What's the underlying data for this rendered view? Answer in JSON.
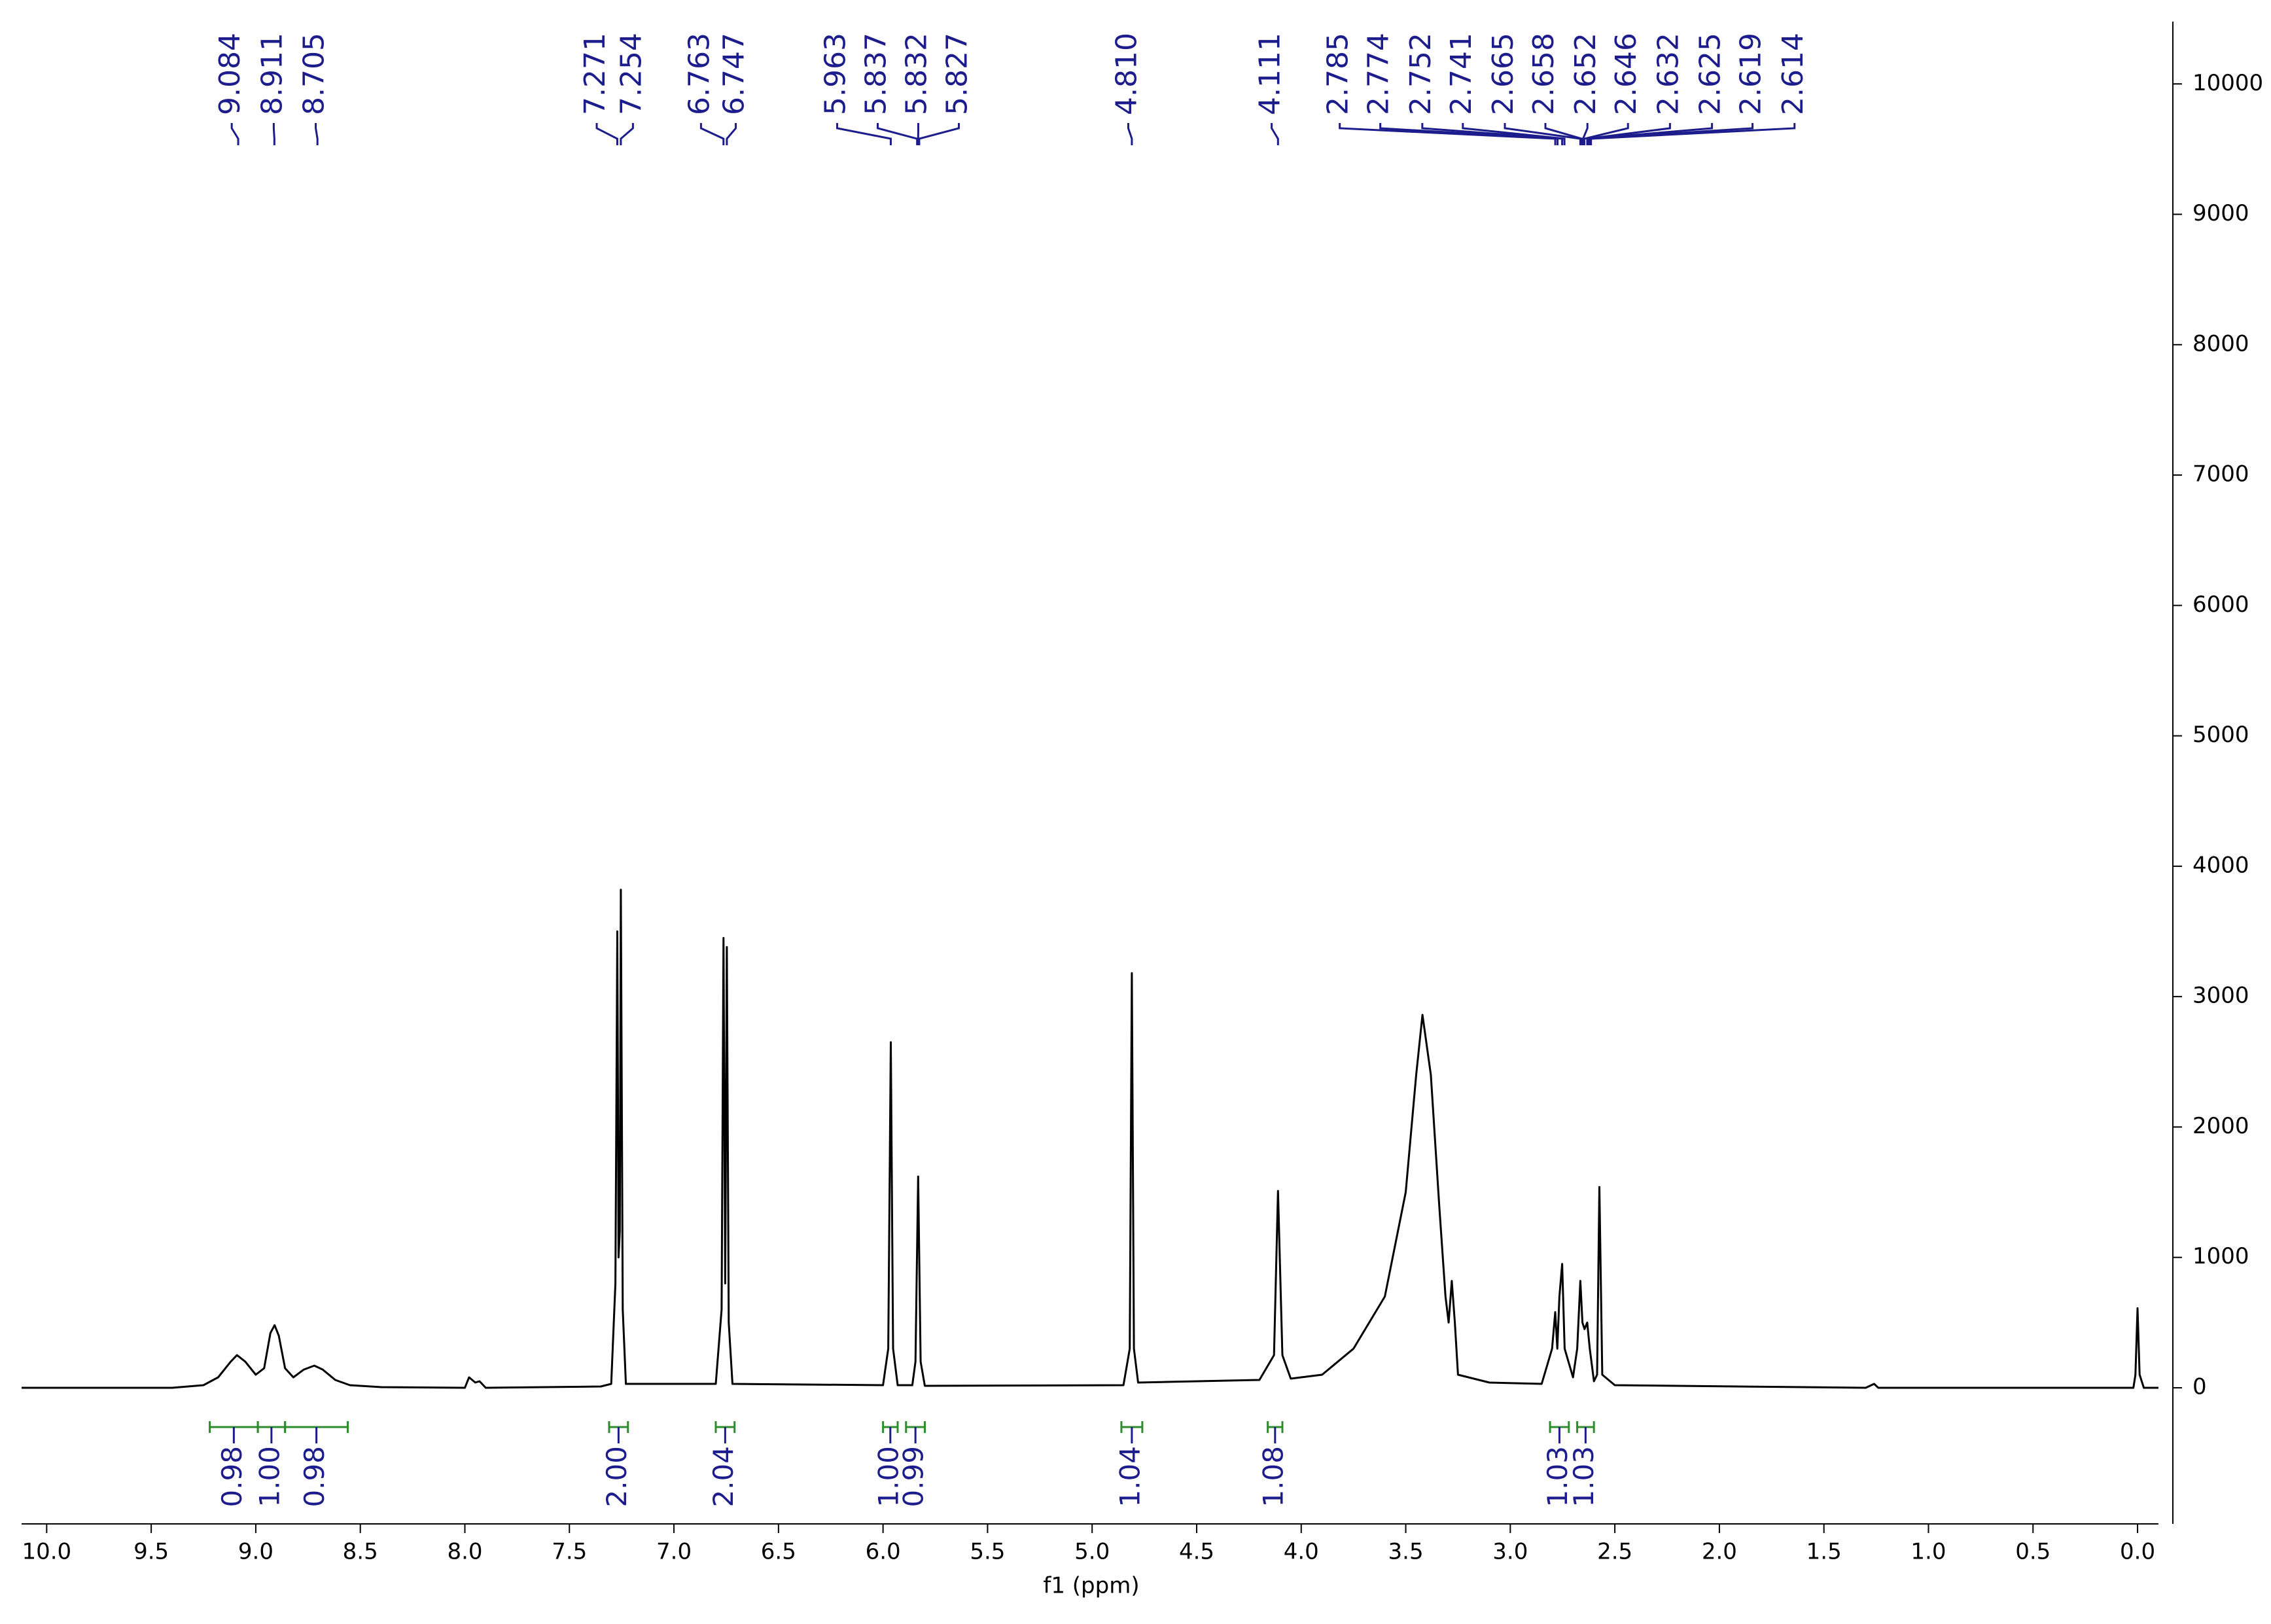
{
  "chart_data": {
    "type": "line",
    "x_label": "f1 (ppm)",
    "x": [
      10.12,
      9.4,
      9.25,
      9.18,
      9.12,
      9.09,
      9.05,
      9.0,
      8.96,
      8.93,
      8.91,
      8.89,
      8.86,
      8.82,
      8.77,
      8.72,
      8.68,
      8.62,
      8.55,
      8.4,
      8.0,
      7.98,
      7.95,
      7.93,
      7.9,
      7.35,
      7.3,
      7.28,
      7.271,
      7.265,
      7.259,
      7.254,
      7.245,
      7.23,
      6.8,
      6.772,
      6.763,
      6.755,
      6.747,
      6.738,
      6.72,
      6.0,
      5.975,
      5.963,
      5.952,
      5.93,
      5.86,
      5.845,
      5.832,
      5.82,
      5.8,
      4.85,
      4.82,
      4.81,
      4.8,
      4.78,
      4.2,
      4.13,
      4.111,
      4.09,
      4.05,
      3.9,
      3.75,
      3.6,
      3.5,
      3.45,
      3.42,
      3.38,
      3.34,
      3.31,
      3.295,
      3.28,
      3.265,
      3.25,
      3.1,
      2.85,
      2.8,
      2.785,
      2.775,
      2.765,
      2.752,
      2.74,
      2.7,
      2.68,
      2.665,
      2.655,
      2.645,
      2.632,
      2.62,
      2.6,
      2.585,
      2.574,
      2.56,
      2.5,
      1.3,
      1.26,
      1.24,
      0.02,
      0.01,
      0.0,
      -0.01,
      -0.03,
      -0.1
    ],
    "series": [
      {
        "color": "#000000",
        "values": [
          0,
          0,
          20,
          80,
          200,
          250,
          200,
          100,
          150,
          420,
          480,
          400,
          150,
          80,
          140,
          170,
          140,
          60,
          20,
          5,
          0,
          80,
          40,
          50,
          0,
          10,
          30,
          800,
          3500,
          1000,
          1200,
          3820,
          600,
          30,
          30,
          600,
          3450,
          800,
          3380,
          500,
          30,
          20,
          300,
          2650,
          300,
          20,
          20,
          200,
          1620,
          200,
          15,
          20,
          300,
          3180,
          300,
          40,
          60,
          250,
          1510,
          250,
          70,
          100,
          300,
          700,
          1500,
          2400,
          2860,
          2400,
          1400,
          700,
          500,
          820,
          500,
          100,
          40,
          30,
          300,
          580,
          300,
          700,
          950,
          300,
          80,
          300,
          820,
          500,
          450,
          500,
          300,
          50,
          100,
          1540,
          100,
          20,
          0,
          30,
          0,
          0,
          100,
          610,
          100,
          0,
          0
        ]
      }
    ],
    "xlim": [
      10.12,
      -0.1
    ],
    "xticks": [
      {
        "value": 10,
        "label": "10.0"
      },
      9.5,
      {
        "value": 9,
        "label": "9.0"
      },
      8.5,
      {
        "value": 8,
        "label": "8.0"
      },
      7.5,
      {
        "value": 7,
        "label": "7.0"
      },
      6.5,
      {
        "value": 6,
        "label": "6.0"
      },
      5.5,
      {
        "value": 5,
        "label": "5.0"
      },
      4.5,
      {
        "value": 4,
        "label": "4.0"
      },
      3.5,
      {
        "value": 3,
        "label": "3.0"
      },
      2.5,
      {
        "value": 2,
        "label": "2.0"
      },
      1.5,
      {
        "value": 1,
        "label": "1.0"
      },
      0.5,
      {
        "value": 0,
        "label": "0.0"
      }
    ],
    "ylim": [
      -1044,
      10478
    ],
    "yticks": [
      0,
      1000,
      2000,
      3000,
      4000,
      5000,
      6000,
      7000,
      8000,
      9000,
      10000
    ],
    "peak_labels": [
      9.084,
      8.911,
      8.705,
      7.271,
      7.254,
      6.763,
      6.747,
      5.963,
      5.837,
      5.832,
      5.827,
      {
        "value": 4.81,
        "label": "4.810"
      },
      4.111,
      2.785,
      2.774,
      2.752,
      2.741,
      2.665,
      2.658,
      2.652,
      2.646,
      2.632,
      2.625,
      2.619,
      2.614
    ],
    "peak_label_color": "#1c1c8c",
    "integrals": [
      {
        "range": [
          9.22,
          8.99
        ],
        "value": 0.98
      },
      {
        "range": [
          8.99,
          8.86
        ],
        "value": 1,
        "label": "1.00"
      },
      {
        "range": [
          8.86,
          8.56
        ],
        "value": 0.98
      },
      {
        "range": [
          7.31,
          7.22
        ],
        "value": 2,
        "label": "2.00"
      },
      {
        "range": [
          6.8,
          6.71
        ],
        "value": 2.04
      },
      {
        "range": [
          6.0,
          5.93
        ],
        "value": 1,
        "label": "1.00"
      },
      {
        "range": [
          5.89,
          5.8
        ],
        "value": 0.99
      },
      {
        "range": [
          4.86,
          4.76
        ],
        "value": 1.04
      },
      {
        "range": [
          4.16,
          4.09
        ],
        "value": 1.08
      },
      {
        "range": [
          2.81,
          2.72
        ],
        "value": 1.03
      },
      {
        "range": [
          2.68,
          2.6
        ],
        "value": 1.03
      }
    ],
    "integral_color": "#2e8b2e"
  }
}
